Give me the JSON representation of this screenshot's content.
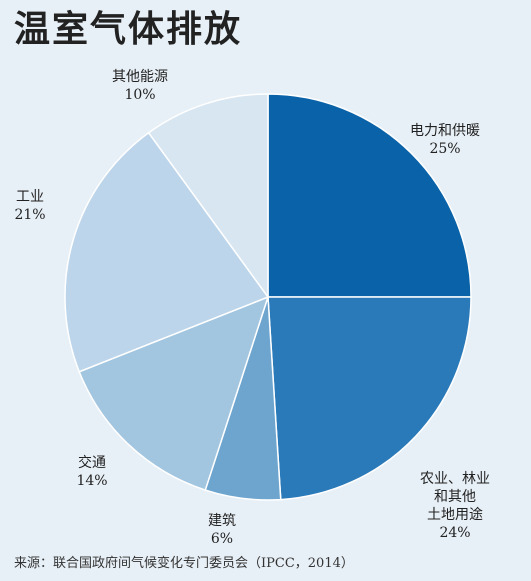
{
  "chart_data": {
    "type": "pie",
    "title": "温室气体排放",
    "slices": [
      {
        "label_lines": [
          "电力和供暖"
        ],
        "value": 25,
        "value_label": "25%",
        "color": "#0a63a8"
      },
      {
        "label_lines": [
          "农业、林业和其他",
          "土地用途"
        ],
        "value": 24,
        "value_label": "24%",
        "color": "#2a7ab9"
      },
      {
        "label_lines": [
          "建筑"
        ],
        "value": 6,
        "value_label": "6%",
        "color": "#6ea5cf"
      },
      {
        "label_lines": [
          "交通"
        ],
        "value": 14,
        "value_label": "14%",
        "color": "#a3c6e0"
      },
      {
        "label_lines": [
          "工业"
        ],
        "value": 21,
        "value_label": "21%",
        "color": "#bcd5ea"
      },
      {
        "label_lines": [
          "其他能源"
        ],
        "value": 10,
        "value_label": "10%",
        "color": "#d8e6f2"
      }
    ],
    "start": "12 o'clock",
    "direction": "clockwise"
  },
  "source": "来源：联合国政府间气候变化专门委员会（IPCC，2014）"
}
